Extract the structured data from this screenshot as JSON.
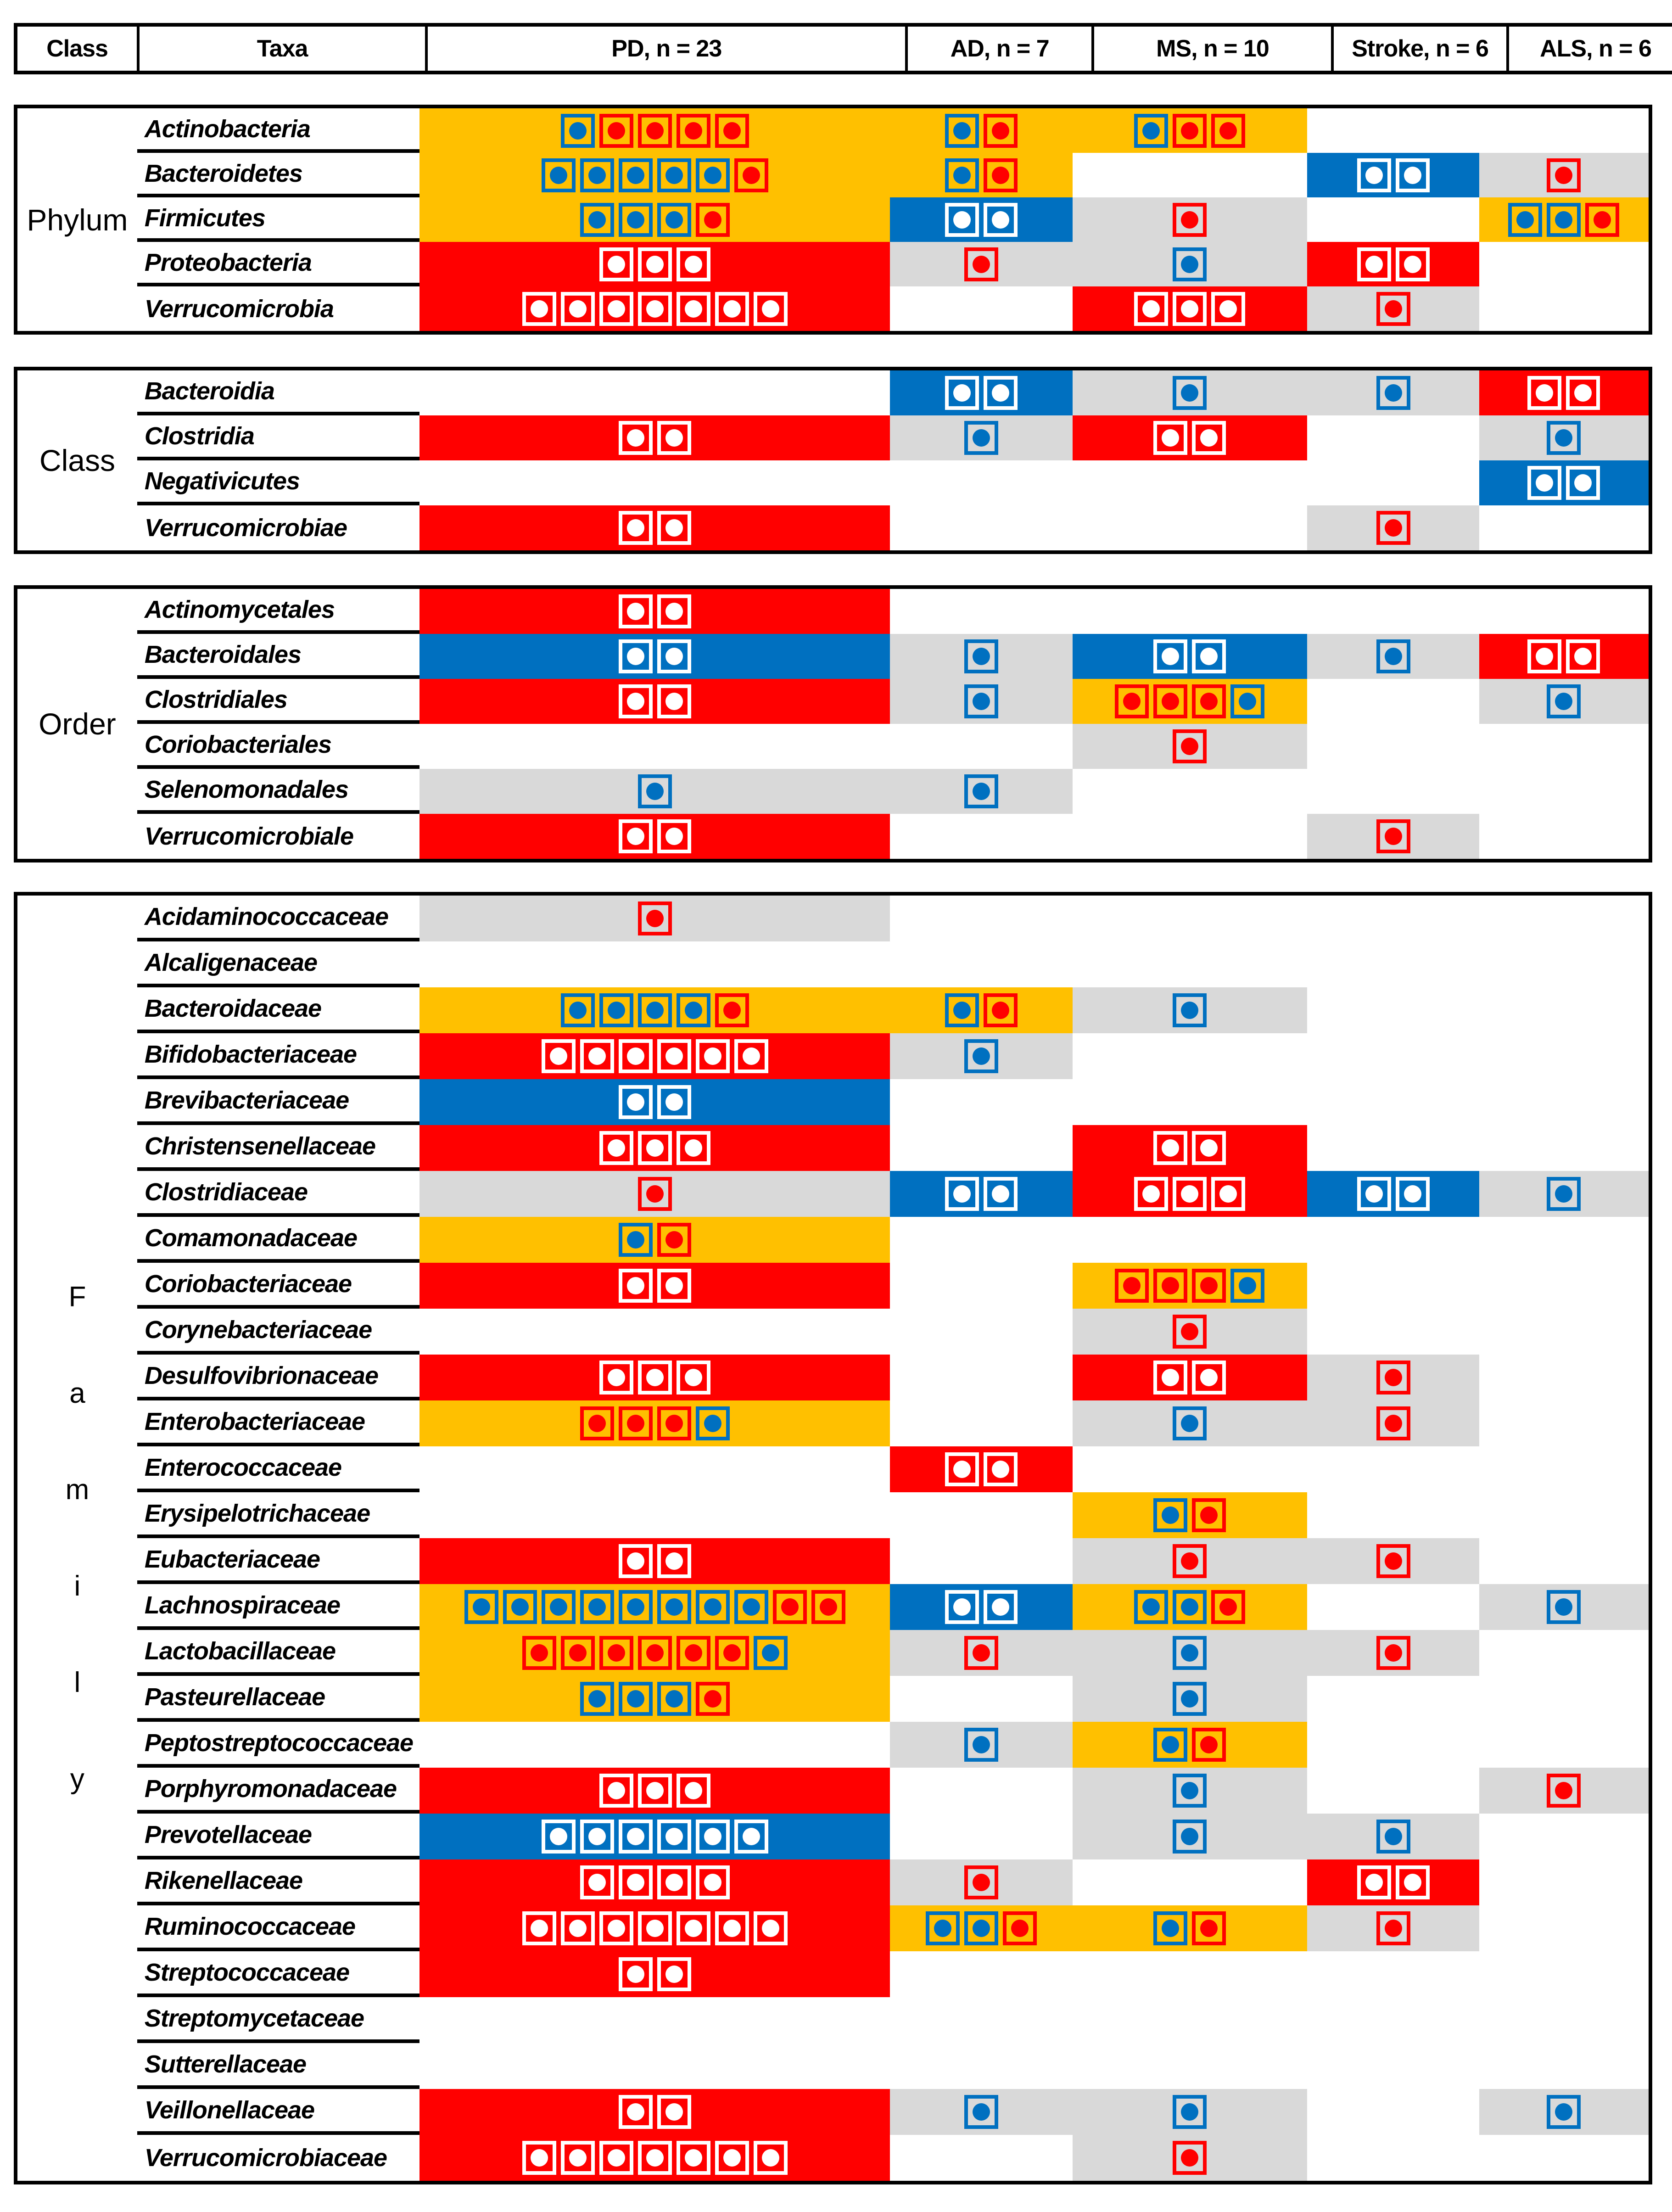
{
  "header": {
    "columns": [
      {
        "key": "class",
        "label": "Class"
      },
      {
        "key": "taxa",
        "label": "Taxa"
      },
      {
        "key": "pd",
        "label": "PD, n = 23"
      },
      {
        "key": "ad",
        "label": "AD, n = 7"
      },
      {
        "key": "ms",
        "label": "MS, n = 10"
      },
      {
        "key": "stroke",
        "label": "Stroke, n = 6"
      },
      {
        "key": "als",
        "label": "ALS, n = 6"
      }
    ]
  },
  "colors": {
    "yellow": "#FFC000",
    "red": "#FF0000",
    "blue": "#0070C0",
    "gray": "#D9D9D9",
    "white": "#FFFFFF",
    "line": "#000000"
  },
  "codes": {
    "backgrounds": {
      "y": "yellow",
      "r": "red",
      "b": "blue",
      "g": "gray",
      "null": "white/none"
    },
    "markers": {
      "b": "blue-outlined square with blue dot",
      "r": "red-outlined square with red dot",
      "w": "white-outlined square with white dot"
    }
  },
  "chart_data": {
    "type": "heatmap",
    "description_visible": "Matrix of taxa (grouped by Phylum, Class, Order, Family) versus disease cohorts; colored cells contain square markers with dots",
    "disease_columns": [
      "PD, n = 23",
      "AD, n = 7",
      "MS, n = 10",
      "Stroke, n = 6",
      "ALS, n = 6"
    ],
    "row_groups": [
      {
        "label": "Phylum",
        "vertical_label": false,
        "rows": [
          {
            "taxon": "Actinobacteria",
            "cells": {
              "pd": {
                "bg": "y",
                "m": "brrrr"
              },
              "ad": {
                "bg": "y",
                "m": "br"
              },
              "ms": {
                "bg": "y",
                "m": "brr"
              },
              "stroke": null,
              "als": null
            }
          },
          {
            "taxon": "Bacteroidetes",
            "cells": {
              "pd": {
                "bg": "y",
                "m": "bbbbbr"
              },
              "ad": {
                "bg": "y",
                "m": "br"
              },
              "ms": null,
              "stroke": {
                "bg": "b",
                "m": "ww"
              },
              "als": {
                "bg": "g",
                "m": "r"
              }
            }
          },
          {
            "taxon": "Firmicutes",
            "cells": {
              "pd": {
                "bg": "y",
                "m": "bbbr"
              },
              "ad": {
                "bg": "b",
                "m": "ww"
              },
              "ms": {
                "bg": "g",
                "m": "r"
              },
              "stroke": null,
              "als": {
                "bg": "y",
                "m": "bbr"
              }
            }
          },
          {
            "taxon": "Proteobacteria",
            "cells": {
              "pd": {
                "bg": "r",
                "m": "www"
              },
              "ad": {
                "bg": "g",
                "m": "r"
              },
              "ms": {
                "bg": "g",
                "m": "b"
              },
              "stroke": {
                "bg": "r",
                "m": "ww"
              },
              "als": null
            }
          },
          {
            "taxon": "Verrucomicrobia",
            "cells": {
              "pd": {
                "bg": "r",
                "m": "wwwwwww"
              },
              "ad": null,
              "ms": {
                "bg": "r",
                "m": "www"
              },
              "stroke": {
                "bg": "g",
                "m": "r"
              },
              "als": null
            }
          }
        ]
      },
      {
        "label": "Class",
        "vertical_label": false,
        "rows": [
          {
            "taxon": "Bacteroidia",
            "cells": {
              "pd": null,
              "ad": {
                "bg": "b",
                "m": "ww"
              },
              "ms": {
                "bg": "g",
                "m": "b"
              },
              "stroke": {
                "bg": "g",
                "m": "b"
              },
              "als": {
                "bg": "r",
                "m": "ww"
              }
            }
          },
          {
            "taxon": "Clostridia",
            "cells": {
              "pd": {
                "bg": "r",
                "m": "ww"
              },
              "ad": {
                "bg": "g",
                "m": "b"
              },
              "ms": {
                "bg": "r",
                "m": "ww"
              },
              "stroke": null,
              "als": {
                "bg": "g",
                "m": "b"
              }
            }
          },
          {
            "taxon": "Negativicutes",
            "cells": {
              "pd": null,
              "ad": null,
              "ms": null,
              "stroke": null,
              "als": {
                "bg": "b",
                "m": "ww"
              }
            }
          },
          {
            "taxon": "Verrucomicrobiae",
            "cells": {
              "pd": {
                "bg": "r",
                "m": "ww"
              },
              "ad": null,
              "ms": null,
              "stroke": {
                "bg": "g",
                "m": "r"
              },
              "als": null
            }
          }
        ]
      },
      {
        "label": "Order",
        "vertical_label": false,
        "rows": [
          {
            "taxon": "Actinomycetales",
            "cells": {
              "pd": {
                "bg": "r",
                "m": "ww"
              },
              "ad": null,
              "ms": null,
              "stroke": null,
              "als": null
            }
          },
          {
            "taxon": "Bacteroidales",
            "cells": {
              "pd": {
                "bg": "b",
                "m": "ww"
              },
              "ad": {
                "bg": "g",
                "m": "b"
              },
              "ms": {
                "bg": "b",
                "m": "ww"
              },
              "stroke": {
                "bg": "g",
                "m": "b"
              },
              "als": {
                "bg": "r",
                "m": "ww"
              }
            }
          },
          {
            "taxon": "Clostridiales",
            "cells": {
              "pd": {
                "bg": "r",
                "m": "ww"
              },
              "ad": {
                "bg": "g",
                "m": "b"
              },
              "ms": {
                "bg": "y",
                "m": "rrrb"
              },
              "stroke": null,
              "als": {
                "bg": "g",
                "m": "b"
              }
            }
          },
          {
            "taxon": "Coriobacteriales",
            "cells": {
              "pd": null,
              "ad": null,
              "ms": {
                "bg": "g",
                "m": "r"
              },
              "stroke": null,
              "als": null
            }
          },
          {
            "taxon": "Selenomonadales",
            "cells": {
              "pd": {
                "bg": "g",
                "m": "b"
              },
              "ad": {
                "bg": "g",
                "m": "b"
              },
              "ms": null,
              "stroke": null,
              "als": null
            }
          },
          {
            "taxon": "Verrucomicrobiale",
            "cells": {
              "pd": {
                "bg": "r",
                "m": "ww"
              },
              "ad": null,
              "ms": null,
              "stroke": {
                "bg": "g",
                "m": "r"
              },
              "als": null
            }
          }
        ]
      },
      {
        "label": "Family",
        "vertical_label": true,
        "rows": [
          {
            "taxon": "Acidaminococcaceae",
            "cells": {
              "pd": {
                "bg": "g",
                "m": "r"
              },
              "ad": null,
              "ms": null,
              "stroke": null,
              "als": null
            }
          },
          {
            "taxon": "Alcaligenaceae",
            "cells": {
              "pd": null,
              "ad": null,
              "ms": null,
              "stroke": null,
              "als": null
            }
          },
          {
            "taxon": "Bacteroidaceae",
            "cells": {
              "pd": {
                "bg": "y",
                "m": "bbbbr"
              },
              "ad": {
                "bg": "y",
                "m": "br"
              },
              "ms": {
                "bg": "g",
                "m": "b"
              },
              "stroke": null,
              "als": null
            }
          },
          {
            "taxon": "Bifidobacteriaceae",
            "cells": {
              "pd": {
                "bg": "r",
                "m": "wwwwww"
              },
              "ad": {
                "bg": "g",
                "m": "b"
              },
              "ms": null,
              "stroke": null,
              "als": null
            }
          },
          {
            "taxon": "Brevibacteriaceae",
            "cells": {
              "pd": {
                "bg": "b",
                "m": "ww"
              },
              "ad": null,
              "ms": null,
              "stroke": null,
              "als": null
            }
          },
          {
            "taxon": "Christensenellaceae",
            "cells": {
              "pd": {
                "bg": "r",
                "m": "www"
              },
              "ad": null,
              "ms": {
                "bg": "r",
                "m": "ww"
              },
              "stroke": null,
              "als": null
            }
          },
          {
            "taxon": "Clostridiaceae",
            "cells": {
              "pd": {
                "bg": "g",
                "m": "r"
              },
              "ad": {
                "bg": "b",
                "m": "ww"
              },
              "ms": {
                "bg": "r",
                "m": "www"
              },
              "stroke": {
                "bg": "b",
                "m": "ww"
              },
              "als": {
                "bg": "g",
                "m": "b"
              }
            }
          },
          {
            "taxon": "Comamonadaceae",
            "cells": {
              "pd": {
                "bg": "y",
                "m": "br"
              },
              "ad": null,
              "ms": null,
              "stroke": null,
              "als": null
            }
          },
          {
            "taxon": "Coriobacteriaceae",
            "cells": {
              "pd": {
                "bg": "r",
                "m": "ww"
              },
              "ad": null,
              "ms": {
                "bg": "y",
                "m": "rrrb"
              },
              "stroke": null,
              "als": null
            }
          },
          {
            "taxon": "Corynebacteriaceae",
            "cells": {
              "pd": null,
              "ad": null,
              "ms": {
                "bg": "g",
                "m": "r"
              },
              "stroke": null,
              "als": null
            }
          },
          {
            "taxon": "Desulfovibrionaceae",
            "cells": {
              "pd": {
                "bg": "r",
                "m": "www"
              },
              "ad": null,
              "ms": {
                "bg": "r",
                "m": "ww"
              },
              "stroke": {
                "bg": "g",
                "m": "r"
              },
              "als": null
            }
          },
          {
            "taxon": "Enterobacteriaceae",
            "cells": {
              "pd": {
                "bg": "y",
                "m": "rrrb"
              },
              "ad": null,
              "ms": {
                "bg": "g",
                "m": "b"
              },
              "stroke": {
                "bg": "g",
                "m": "r"
              },
              "als": null
            }
          },
          {
            "taxon": "Enterococcaceae",
            "cells": {
              "pd": null,
              "ad": {
                "bg": "r",
                "m": "ww"
              },
              "ms": null,
              "stroke": null,
              "als": null
            }
          },
          {
            "taxon": "Erysipelotrichaceae",
            "cells": {
              "pd": null,
              "ad": null,
              "ms": {
                "bg": "y",
                "m": "br"
              },
              "stroke": null,
              "als": null
            }
          },
          {
            "taxon": "Eubacteriaceae",
            "cells": {
              "pd": {
                "bg": "r",
                "m": "ww"
              },
              "ad": null,
              "ms": {
                "bg": "g",
                "m": "r"
              },
              "stroke": {
                "bg": "g",
                "m": "r"
              },
              "als": null
            }
          },
          {
            "taxon": "Lachnospiraceae",
            "cells": {
              "pd": {
                "bg": "y",
                "m": "bbbbbbbbrr"
              },
              "ad": {
                "bg": "b",
                "m": "ww"
              },
              "ms": {
                "bg": "y",
                "m": "bbr"
              },
              "stroke": null,
              "als": {
                "bg": "g",
                "m": "b"
              }
            }
          },
          {
            "taxon": "Lactobacillaceae",
            "cells": {
              "pd": {
                "bg": "y",
                "m": "rrrrrrb"
              },
              "ad": {
                "bg": "g",
                "m": "r"
              },
              "ms": {
                "bg": "g",
                "m": "b"
              },
              "stroke": {
                "bg": "g",
                "m": "r"
              },
              "als": null
            }
          },
          {
            "taxon": "Pasteurellaceae",
            "cells": {
              "pd": {
                "bg": "y",
                "m": "bbbr"
              },
              "ad": null,
              "ms": {
                "bg": "g",
                "m": "b"
              },
              "stroke": null,
              "als": null
            }
          },
          {
            "taxon": "Peptostreptococcaceae",
            "cells": {
              "pd": null,
              "ad": {
                "bg": "g",
                "m": "b"
              },
              "ms": {
                "bg": "y",
                "m": "br"
              },
              "stroke": null,
              "als": null
            }
          },
          {
            "taxon": "Porphyromonadaceae",
            "cells": {
              "pd": {
                "bg": "r",
                "m": "www"
              },
              "ad": null,
              "ms": {
                "bg": "g",
                "m": "b"
              },
              "stroke": null,
              "als": {
                "bg": "g",
                "m": "r"
              }
            }
          },
          {
            "taxon": "Prevotellaceae",
            "cells": {
              "pd": {
                "bg": "b",
                "m": "wwwwww"
              },
              "ad": null,
              "ms": {
                "bg": "g",
                "m": "b"
              },
              "stroke": {
                "bg": "g",
                "m": "b"
              },
              "als": null
            }
          },
          {
            "taxon": "Rikenellaceae",
            "cells": {
              "pd": {
                "bg": "r",
                "m": "wwww"
              },
              "ad": {
                "bg": "g",
                "m": "r"
              },
              "ms": null,
              "stroke": {
                "bg": "r",
                "m": "ww"
              },
              "als": null
            }
          },
          {
            "taxon": "Ruminococcaceae",
            "cells": {
              "pd": {
                "bg": "r",
                "m": "wwwwwww"
              },
              "ad": {
                "bg": "y",
                "m": "bbr"
              },
              "ms": {
                "bg": "y",
                "m": "br"
              },
              "stroke": {
                "bg": "g",
                "m": "r"
              },
              "als": null
            }
          },
          {
            "taxon": "Streptococcaceae",
            "cells": {
              "pd": {
                "bg": "r",
                "m": "ww"
              },
              "ad": null,
              "ms": null,
              "stroke": null,
              "als": null
            }
          },
          {
            "taxon": "Streptomycetaceae",
            "cells": {
              "pd": null,
              "ad": null,
              "ms": null,
              "stroke": null,
              "als": null
            }
          },
          {
            "taxon": "Sutterellaceae",
            "cells": {
              "pd": null,
              "ad": null,
              "ms": null,
              "stroke": null,
              "als": null
            }
          },
          {
            "taxon": "Veillonellaceae",
            "cells": {
              "pd": {
                "bg": "r",
                "m": "ww"
              },
              "ad": {
                "bg": "g",
                "m": "b"
              },
              "ms": {
                "bg": "g",
                "m": "b"
              },
              "stroke": null,
              "als": {
                "bg": "g",
                "m": "b"
              }
            }
          },
          {
            "taxon": "Verrucomicrobiaceae",
            "cells": {
              "pd": {
                "bg": "r",
                "m": "wwwwwww"
              },
              "ad": null,
              "ms": {
                "bg": "g",
                "m": "r"
              },
              "stroke": null,
              "als": null
            }
          }
        ]
      }
    ]
  }
}
